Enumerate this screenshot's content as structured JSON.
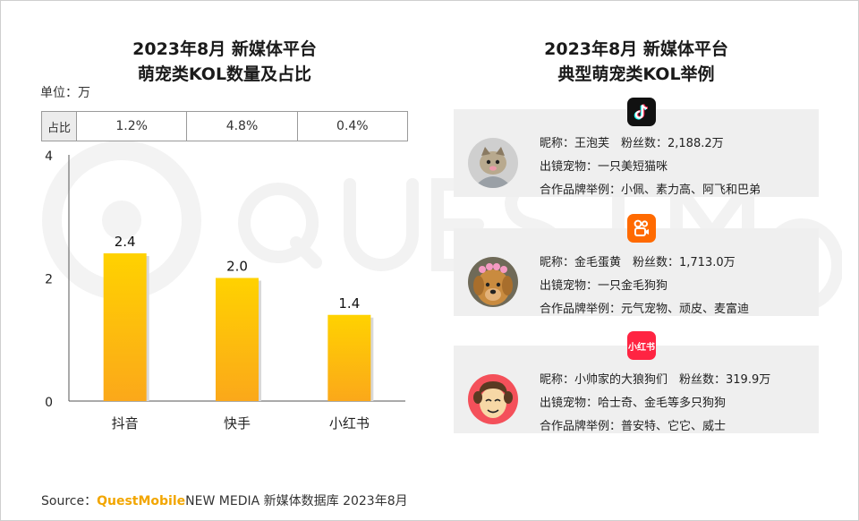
{
  "colors": {
    "bar_top": "#ffd200",
    "bar_bottom": "#fba81a",
    "brand": "#f2a600",
    "card_bg": "#efefef"
  },
  "left_title": {
    "line1": "2023年8月 新媒体平台",
    "line2": "萌宠类KOL数量及占比"
  },
  "right_title": {
    "line1": "2023年8月 新媒体平台",
    "line2": "典型萌宠类KOL举例"
  },
  "unit_label": "单位：万",
  "share_row": {
    "label": "占比",
    "values": [
      "1.2%",
      "4.8%",
      "0.4%"
    ]
  },
  "chart_data": {
    "type": "bar",
    "categories": [
      "抖音",
      "快手",
      "小红书"
    ],
    "values": [
      2.4,
      2.0,
      1.4
    ],
    "value_labels": [
      "2.4",
      "2.0",
      "1.4"
    ],
    "ylim": [
      0,
      4
    ],
    "yticks": [
      "0",
      "2",
      "4"
    ],
    "title": "2023年8月 新媒体平台 萌宠类KOL数量及占比",
    "xlabel": "",
    "ylabel": "单位：万",
    "grid": false
  },
  "kols": [
    {
      "platform_icon": "douyin-icon",
      "name_line": "昵称：王泡芙　粉丝数：2,188.2万",
      "pet_line": "出镜宠物：一只美短猫咪",
      "brand_line": "合作品牌举例：小佩、素力高、阿飞和巴弟"
    },
    {
      "platform_icon": "kuaishou-icon",
      "name_line": "昵称：金毛蛋黄　粉丝数：1,713.0万",
      "pet_line": "出镜宠物：一只金毛狗狗",
      "brand_line": "合作品牌举例：元气宠物、顽皮、麦富迪"
    },
    {
      "platform_icon": "xiaohongshu-icon",
      "platform_text": "小红书",
      "name_line": "昵称：小帅家的大狼狗们　粉丝数：319.9万",
      "pet_line": "出镜宠物：哈士奇、金毛等多只狗狗",
      "brand_line": "合作品牌举例：普安特、它它、威士"
    }
  ],
  "source": {
    "prefix": "Source：",
    "brand": "QuestMobile",
    "rest": "NEW MEDIA 新媒体数据库 2023年8月"
  }
}
